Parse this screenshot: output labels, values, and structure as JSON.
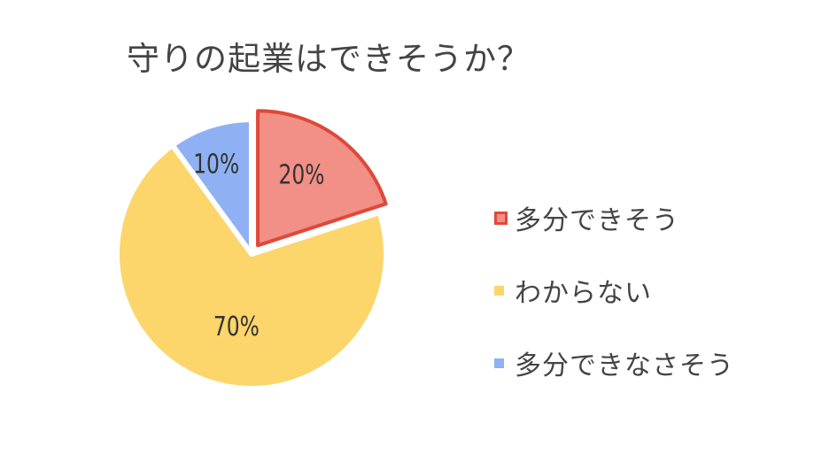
{
  "chart_data": {
    "type": "pie",
    "title": "守りの起業はできそうか？",
    "categories": [
      "多分できそう",
      "わからない",
      "多分できなさそう"
    ],
    "values": [
      20,
      70,
      10
    ],
    "data_labels": [
      "20%",
      "70%",
      "10%"
    ],
    "colors": [
      "#F28F86",
      "#FCD56B",
      "#8FB1F3"
    ],
    "highlight_stroke": "#E0483A",
    "exploded": [
      0
    ],
    "start_angle_deg": 0,
    "direction": "clockwise",
    "legend_position": "right"
  }
}
